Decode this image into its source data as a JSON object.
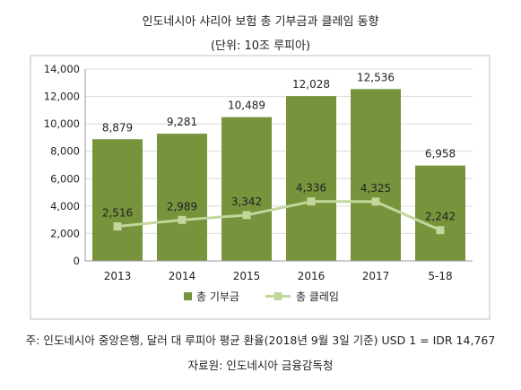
{
  "title": "인도네시아 샤리아 보험 총 기부금과 클레임 동향",
  "subtitle": "(단위: 10조 루피아)",
  "note": "주: 인도네시아 중앙은행, 달러 대 루피아 평균 환율(2018년 9월 3일 기준) USD 1 = IDR 14,767",
  "source": "자료원: 인도네시아 금융감독청",
  "colors": {
    "bar": "#77933c",
    "line": "#c3d69b",
    "grid": "#d9d9d9",
    "border": "#bfbfbf"
  },
  "chart_data": {
    "type": "bar",
    "categories": [
      "2013",
      "2014",
      "2015",
      "2016",
      "2017",
      "5-18"
    ],
    "series": [
      {
        "name": "총 기부금",
        "type": "bar",
        "values": [
          8879,
          9281,
          10489,
          12028,
          12536,
          6958
        ],
        "labels": [
          "8,879",
          "9,281",
          "10,489",
          "12,028",
          "12,536",
          "6,958"
        ]
      },
      {
        "name": "총 클레임",
        "type": "line",
        "values": [
          2516,
          2989,
          3342,
          4336,
          4325,
          2242
        ],
        "labels": [
          "2,516",
          "2,989",
          "3,342",
          "4,336",
          "4,325",
          "2,242"
        ]
      }
    ],
    "ylim": [
      0,
      14000
    ],
    "yticks": [
      "0",
      "2,000",
      "4,000",
      "6,000",
      "8,000",
      "10,000",
      "12,000",
      "14,000"
    ],
    "grid": true,
    "legend": "bottom"
  }
}
